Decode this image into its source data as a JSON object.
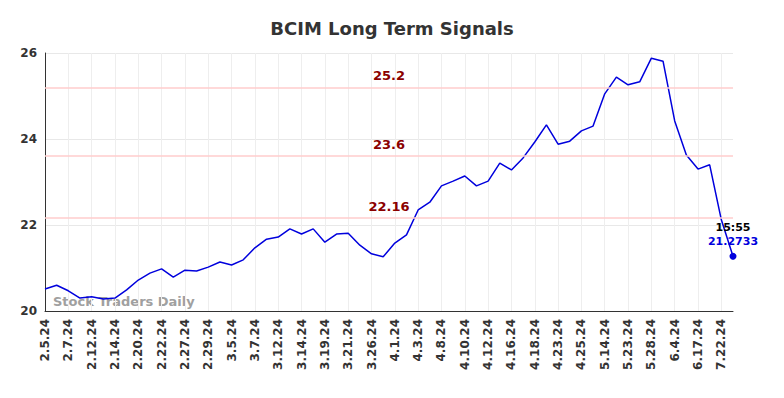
{
  "chart_data": {
    "type": "line",
    "title": "BCIM Long Term Signals",
    "categories": [
      "2.5.24",
      null,
      "2.7.24",
      null,
      "2.12.24",
      null,
      "2.14.24",
      null,
      "2.20.24",
      null,
      "2.22.24",
      null,
      "2.27.24",
      null,
      "2.29.24",
      null,
      "3.5.24",
      null,
      "3.7.24",
      null,
      "3.12.24",
      null,
      "3.14.24",
      null,
      "3.19.24",
      null,
      "3.21.24",
      null,
      "3.26.24",
      null,
      "4.1.24",
      null,
      "4.3.24",
      null,
      "4.8.24",
      null,
      "4.10.24",
      null,
      "4.12.24",
      null,
      "4.16.24",
      null,
      "4.18.24",
      null,
      "4.23.24",
      null,
      "4.25.24",
      null,
      "5.14.24",
      null,
      "5.23.24",
      null,
      "5.28.24",
      null,
      "6.4.24",
      null,
      "6.17.24",
      null,
      "7.22.24",
      null
    ],
    "values": [
      20.51,
      20.6,
      20.47,
      20.3,
      20.33,
      20.28,
      20.3,
      20.49,
      20.72,
      20.88,
      20.98,
      20.79,
      20.95,
      20.93,
      21.02,
      21.14,
      21.07,
      21.19,
      21.47,
      21.67,
      21.72,
      21.91,
      21.79,
      21.91,
      21.6,
      21.79,
      21.81,
      21.53,
      21.33,
      21.26,
      21.58,
      21.77,
      22.35,
      22.53,
      22.91,
      23.02,
      23.14,
      22.91,
      23.02,
      23.44,
      23.28,
      23.56,
      23.93,
      24.33,
      23.88,
      23.95,
      24.19,
      24.3,
      25.05,
      25.44,
      25.26,
      25.33,
      25.88,
      25.81,
      24.42,
      23.63,
      23.3,
      23.4,
      22.12,
      21.2733
    ],
    "color": "#0000dd",
    "ylim": [
      20,
      26
    ],
    "yticks": [
      20,
      22,
      24,
      26
    ],
    "grid": true,
    "reference_lines": [
      25.2,
      23.6,
      22.16
    ],
    "annotations": [
      "15:55",
      "Stock Traders Daily"
    ]
  }
}
